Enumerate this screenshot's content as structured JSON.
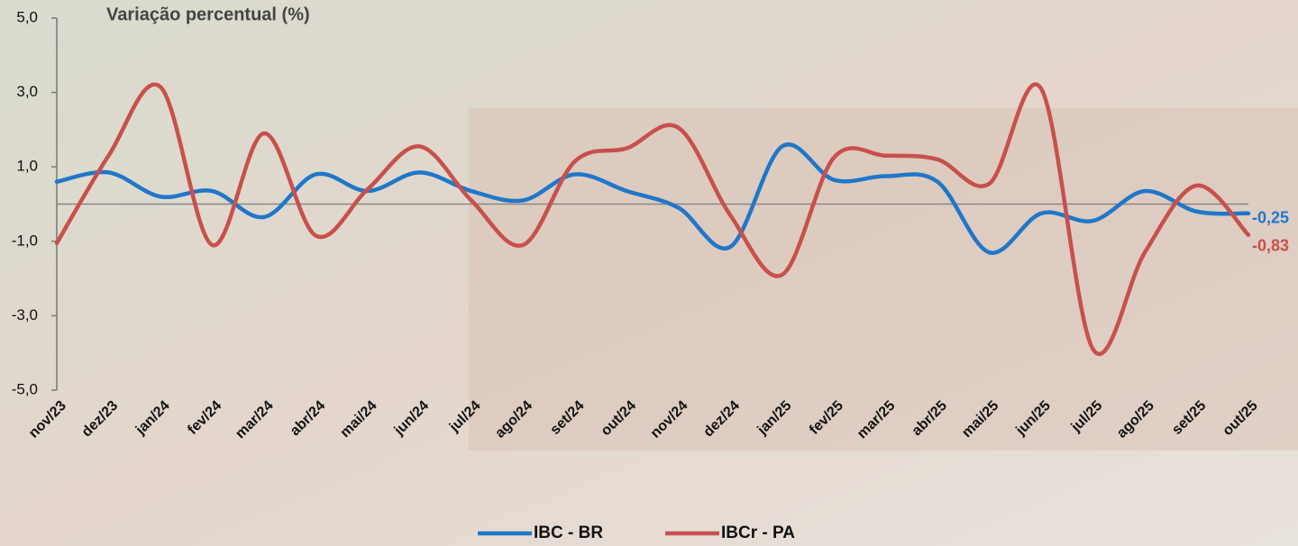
{
  "chart_data": {
    "type": "line",
    "title": "Variação percentual (%)",
    "categories": [
      "nov/23",
      "dez/23",
      "jan/24",
      "fev/24",
      "mar/24",
      "abr/24",
      "mai/24",
      "jun/24",
      "jul/24",
      "ago/24",
      "set/24",
      "out/24",
      "nov/24",
      "dez/24",
      "jan/25",
      "fev/25",
      "mar/25",
      "abr/25",
      "mai/25",
      "jun/25",
      "jul/25",
      "ago/25",
      "set/25",
      "out/25"
    ],
    "series": [
      {
        "name": "IBC - BR",
        "color": "#1f77c9",
        "values": [
          0.6,
          0.85,
          0.2,
          0.35,
          -0.35,
          0.8,
          0.35,
          0.85,
          0.35,
          0.1,
          0.8,
          0.35,
          -0.1,
          -1.15,
          1.55,
          0.65,
          0.75,
          0.6,
          -1.3,
          -0.25,
          -0.45,
          0.35,
          -0.2,
          -0.25
        ],
        "value_labels": [
          null,
          null,
          null,
          null,
          null,
          null,
          null,
          null,
          null,
          null,
          null,
          null,
          null,
          null,
          null,
          null,
          null,
          null,
          null,
          null,
          null,
          null,
          null,
          "-0,25"
        ]
      },
      {
        "name": "IBCr - PA",
        "color": "#c8504c",
        "values": [
          -1.05,
          1.3,
          3.15,
          -1.1,
          1.9,
          -0.85,
          0.4,
          1.55,
          0.1,
          -1.1,
          1.15,
          1.5,
          2.05,
          -0.3,
          -1.9,
          1.25,
          1.3,
          1.2,
          0.55,
          3.1,
          -3.9,
          -1.3,
          0.5,
          -0.83
        ],
        "value_labels": [
          null,
          null,
          null,
          null,
          null,
          null,
          null,
          null,
          null,
          null,
          null,
          null,
          null,
          null,
          null,
          null,
          null,
          null,
          null,
          null,
          null,
          null,
          null,
          "-0,83"
        ]
      }
    ],
    "ylim": [
      -5,
      5
    ],
    "yticks": [
      {
        "value": -5,
        "label": "-5,0"
      },
      {
        "value": -3,
        "label": "-3,0"
      },
      {
        "value": -1,
        "label": "-1,0"
      },
      {
        "value": 1,
        "label": "1,0"
      },
      {
        "value": 3,
        "label": "3,0"
      },
      {
        "value": 5,
        "label": "5,0"
      }
    ],
    "legend": "bottom"
  }
}
